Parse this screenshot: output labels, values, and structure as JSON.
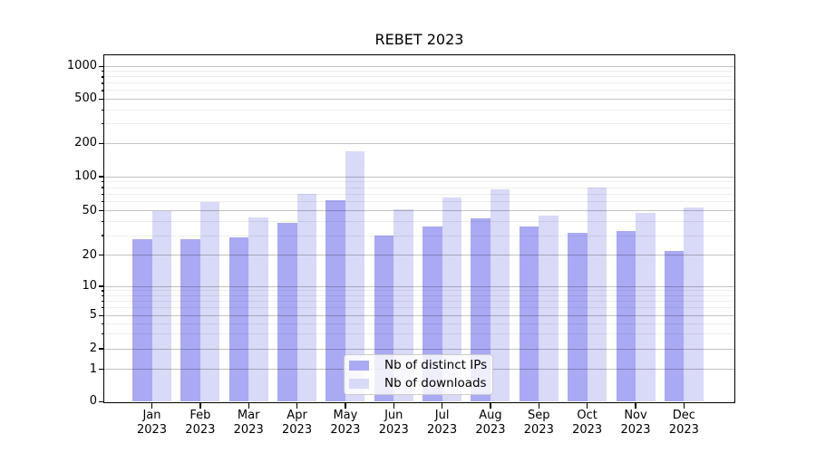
{
  "title": "REBET 2023",
  "chart_data": {
    "type": "bar",
    "title": "REBET 2023",
    "scale": "symlog",
    "grid": true,
    "categories": [
      "Jan",
      "Feb",
      "Mar",
      "Apr",
      "May",
      "Jun",
      "Jul",
      "Aug",
      "Sep",
      "Oct",
      "Nov",
      "Dec"
    ],
    "year": "2023",
    "series": [
      {
        "name": "Nb of distinct IPs",
        "color": "#a9a9f4",
        "values": [
          28,
          28,
          29,
          39,
          62,
          30,
          36,
          43,
          36,
          32,
          33,
          22
        ]
      },
      {
        "name": "Nb of downloads",
        "color": "#d9d9f8",
        "values": [
          50,
          60,
          44,
          70,
          170,
          52,
          65,
          78,
          45,
          80,
          48,
          54
        ]
      }
    ],
    "yticks": [
      0,
      1,
      2,
      5,
      10,
      20,
      50,
      100,
      200,
      500,
      1000
    ],
    "ylim": [
      0,
      1200
    ],
    "xlabel": "",
    "ylabel": "",
    "legend_position": "lower center"
  }
}
